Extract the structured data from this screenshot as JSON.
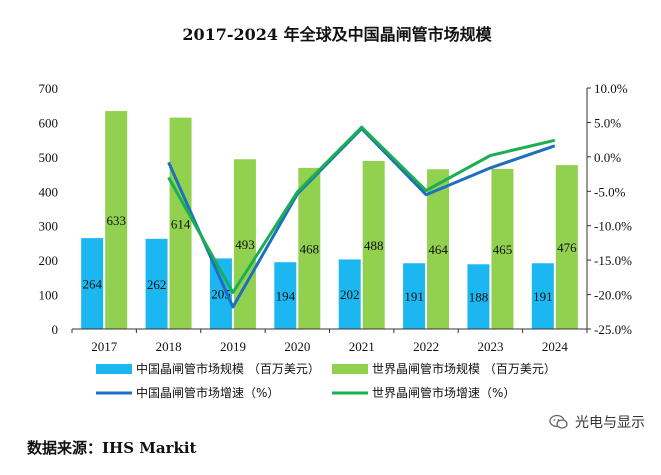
{
  "source_text": "数据来源：IHS Markit",
  "watermark_text": "光电与显示",
  "colors": {
    "china_bar": "#1cb7f0",
    "world_bar": "#92d050",
    "china_line": "#1e6fbf",
    "world_line": "#1aaf50",
    "axis": "#333333"
  },
  "chart_data": {
    "type": "bar",
    "title": "2017-2024 年全球及中国晶闸管市场规模",
    "categories": [
      "2017",
      "2018",
      "2019",
      "2020",
      "2021",
      "2022",
      "2023",
      "2024"
    ],
    "y_left": {
      "ticks": [
        "0",
        "100",
        "200",
        "300",
        "400",
        "500",
        "600",
        "700"
      ],
      "ylim": [
        0,
        700
      ]
    },
    "y_right": {
      "ticks": [
        "-25.0%",
        "-20.0%",
        "-15.0%",
        "-10.0%",
        "-5.0%",
        "0.0%",
        "5.0%",
        "10.0%"
      ],
      "ylim": [
        -25,
        10
      ]
    },
    "series": [
      {
        "name": "中国晶闸管市场规模 （百万美元）",
        "kind": "bar",
        "axis": "left",
        "values": [
          264,
          262,
          205,
          194,
          202,
          191,
          188,
          191
        ],
        "labels": [
          "264",
          "262",
          "205",
          "194",
          "202",
          "191",
          "188",
          "191"
        ]
      },
      {
        "name": "世界晶闸管市场规模 （百万美元）",
        "kind": "bar",
        "axis": "left",
        "values": [
          633,
          614,
          493,
          468,
          488,
          464,
          465,
          476
        ],
        "labels": [
          "633",
          "614",
          "493",
          "468",
          "488",
          "464",
          "465",
          "476"
        ]
      },
      {
        "name": "中国晶闸管市场增速（%）",
        "kind": "line",
        "axis": "right",
        "values": [
          null,
          -0.8,
          -21.8,
          -5.4,
          4.1,
          -5.5,
          -1.6,
          1.6
        ]
      },
      {
        "name": "世界晶闸管市场增速（%）",
        "kind": "line",
        "axis": "right",
        "values": [
          null,
          -3.0,
          -19.7,
          -5.1,
          4.3,
          -4.9,
          0.2,
          2.4
        ]
      }
    ],
    "legend_position": "bottom"
  }
}
